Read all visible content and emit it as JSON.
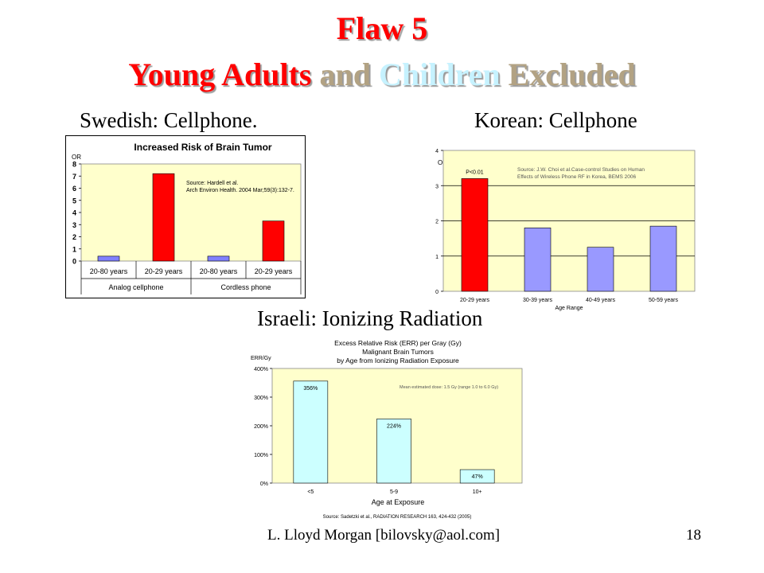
{
  "title": {
    "line1": "Flaw 5",
    "line2_parts": [
      {
        "text": "Young Adults",
        "color": "#ff0000"
      },
      {
        "text": " and ",
        "color": "#b2a283"
      },
      {
        "text": "Children",
        "color": "#c6f2ff"
      },
      {
        "text": " Excluded",
        "color": "#b2a283"
      }
    ]
  },
  "subtitles": {
    "swedish": "Swedish: Cellphone.",
    "korean": "Korean: Cellphone",
    "israeli": "Israeli: Ionizing Radiation"
  },
  "footer": {
    "author": "L. Lloyd Morgan  [bilovsky@aol.com]",
    "page": "18"
  },
  "chart_data": [
    {
      "id": "swedish",
      "type": "bar",
      "title": "Increased Risk of Brain Tumor",
      "ylabel": "OR",
      "categories": [
        "20-80 years",
        "20-29 years",
        "20-80 years",
        "20-29 years"
      ],
      "groups": [
        "Analog cellphone",
        "Cordless phone"
      ],
      "values": [
        0.4,
        7.2,
        0.4,
        3.3
      ],
      "colors": [
        "#8080ff",
        "#ff0000",
        "#8080ff",
        "#ff0000"
      ],
      "ylim": [
        0,
        8
      ],
      "yticks": [
        "0",
        "1",
        "2",
        "3",
        "4",
        "5",
        "6",
        "7",
        "8"
      ],
      "annotation": [
        "Source: Hardell et al.",
        "Arch Environ Health. 2004 Mar;59(3):132-7."
      ],
      "plot_bg": "#ffffcc"
    },
    {
      "id": "korean",
      "type": "bar",
      "ylabel": "OR",
      "xlabel": "Age Range",
      "categories": [
        "20-29 years",
        "30-39 years",
        "40-49 years",
        "50-59 years"
      ],
      "values": [
        3.2,
        1.8,
        1.25,
        1.85
      ],
      "colors": [
        "#ff0000",
        "#9999ff",
        "#9999ff",
        "#9999ff"
      ],
      "ylim": [
        0,
        4
      ],
      "yticks": [
        "0",
        "1",
        "2",
        "3",
        "4"
      ],
      "bar_label": "P<0.01",
      "annotation": [
        "Source: J.W. Choi et al.Case-control Studies on Human",
        "Effects of Wireless Phone RF in Korea, BEMS 2006"
      ],
      "plot_bg": "#ffffcc"
    },
    {
      "id": "israeli",
      "type": "bar",
      "title_lines": [
        "Excess Relative Risk (ERR) per Gray (Gy)",
        "Malignant Brain Tumors",
        "by Age from Ionizing Radiation Exposure"
      ],
      "ylabel": "ERR/Gy",
      "xlabel": "Age at Exposure",
      "categories": [
        "<5",
        "5-9",
        "10+"
      ],
      "values": [
        356,
        224,
        47
      ],
      "data_labels": [
        "356%",
        "224%",
        "47%"
      ],
      "colors": [
        "#ccffff",
        "#ccffff",
        "#ccffff"
      ],
      "ylim": [
        0,
        400
      ],
      "yticks": [
        "0%",
        "100%",
        "200%",
        "300%",
        "400%"
      ],
      "annotation": [
        "Mean estimated dose: 1.5 Gy (range 1.0 to 6.0 Gy)"
      ],
      "source": "Source: Sadetzki et al., RADIATION RESEARCH 163, 424-432 (2005)",
      "plot_bg": "#ffffcc"
    }
  ]
}
